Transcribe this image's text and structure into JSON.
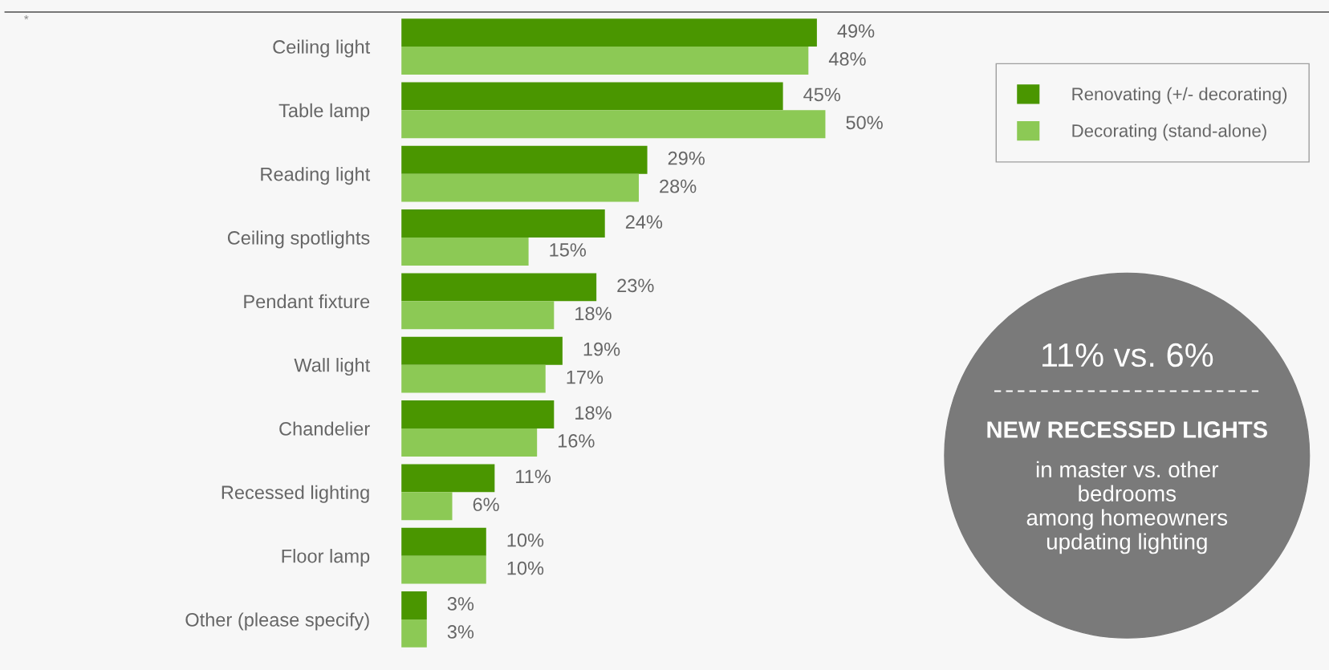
{
  "chart_data": {
    "type": "bar",
    "orientation": "horizontal",
    "categories": [
      "Ceiling light",
      "Table lamp",
      "Reading light",
      "Ceiling spotlights",
      "Pendant fixture",
      "Wall light",
      "Chandelier",
      "Recessed lighting",
      "Floor lamp",
      "Other (please specify)"
    ],
    "series": [
      {
        "name": "Renovating (+/- decorating)",
        "color": "#4a9600",
        "values": [
          49,
          45,
          29,
          24,
          23,
          19,
          18,
          11,
          10,
          3
        ],
        "value_labels": [
          "49%",
          "45%",
          "29%",
          "24%",
          "23%",
          "19%",
          "18%",
          "11%",
          "10%",
          "3%"
        ]
      },
      {
        "name": "Decorating (stand-alone)",
        "color": "#8cc955",
        "values": [
          48,
          50,
          28,
          15,
          18,
          17,
          16,
          6,
          10,
          3
        ],
        "value_labels": [
          "48%",
          "50%",
          "28%",
          "15%",
          "18%",
          "17%",
          "16%",
          "6%",
          "10%",
          "3%"
        ]
      }
    ],
    "legend": "top right",
    "grid": false,
    "tick_labels": "y",
    "annotations": [
      "*",
      "11% vs. 6%",
      "NEW RECESSED LIGHTS",
      "in master vs. other\nbedrooms\namong homeowners\nupdating lighting"
    ]
  }
}
